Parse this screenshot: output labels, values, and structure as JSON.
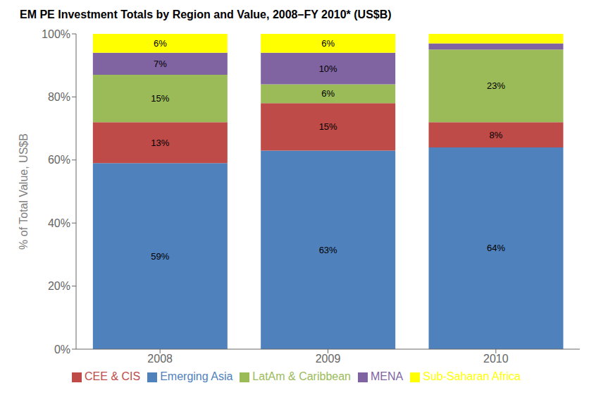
{
  "chart_data": {
    "type": "bar",
    "title": "EM PE Investment Totals by Region and Value, 2008–FY 2010* (US$B)",
    "y_label": "% of Total Value, US$B",
    "categories": [
      "2008",
      "2009",
      "2010"
    ],
    "series": [
      {
        "name": "Emerging Asia",
        "color": "#4F81BD",
        "values": [
          59,
          63,
          64
        ],
        "value_labels": [
          "59%",
          "63%",
          "64%"
        ]
      },
      {
        "name": "CEE & CIS",
        "color": "#BE4B48",
        "values": [
          13,
          15,
          8
        ],
        "value_labels": [
          "13%",
          "15%",
          "8%"
        ]
      },
      {
        "name": "LatAm & Caribbean",
        "color": "#9BBB59",
        "values": [
          15,
          6,
          23
        ],
        "value_labels": [
          "15%",
          "6%",
          "23%"
        ]
      },
      {
        "name": "MENA",
        "color": "#8064A2",
        "values": [
          7,
          10,
          2
        ],
        "value_labels": [
          "7%",
          "10%",
          null
        ]
      },
      {
        "name": "Sub-Saharan Africa",
        "color": "#FFFF00",
        "values": [
          6,
          6,
          3
        ],
        "value_labels": [
          "6%",
          "6%",
          null
        ]
      }
    ],
    "ylim": [
      0,
      100
    ],
    "yticks": [
      {
        "value": 0,
        "label": "0%"
      },
      {
        "value": 20,
        "label": "20%"
      },
      {
        "value": 40,
        "label": "40%"
      },
      {
        "value": 60,
        "label": "60%"
      },
      {
        "value": 80,
        "label": "80%"
      },
      {
        "value": 100,
        "label": "100%"
      }
    ],
    "stacked": true,
    "data_labels": true,
    "grid": false,
    "legend": "bottom"
  }
}
